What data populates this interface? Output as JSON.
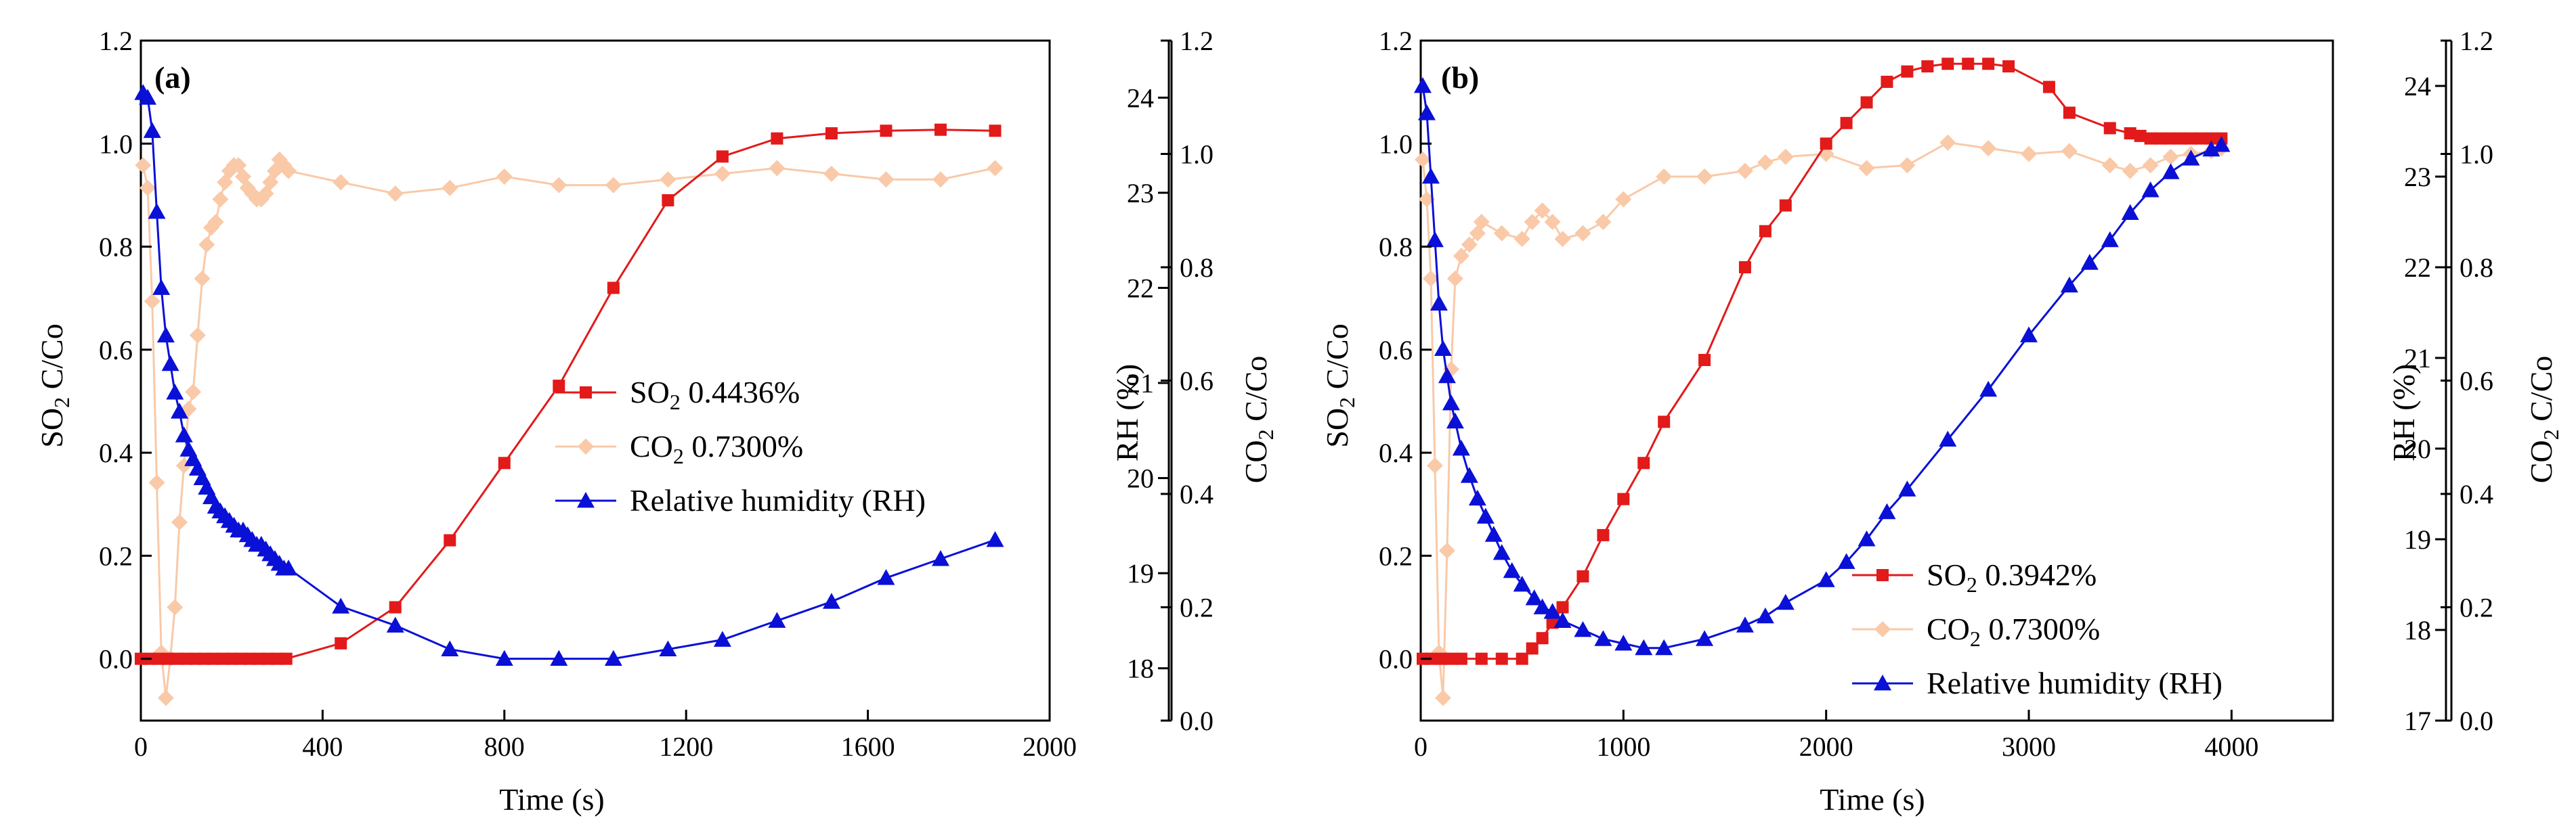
{
  "chart_data": [
    {
      "type": "line",
      "panel_label": "(a)",
      "xlabel": "Time (s)",
      "ylabel_left": "SO2 C/Co",
      "ylabel_right1": "RH (%)",
      "ylabel_right2": "CO2 C/Co",
      "xlim": [
        0,
        2000
      ],
      "ylim_left": [
        -0.12,
        1.2
      ],
      "ylim_rh": [
        17.45,
        24.6
      ],
      "ylim_co2": [
        0,
        1.2
      ],
      "x_ticks": [
        0,
        400,
        800,
        1200,
        1600,
        2000
      ],
      "y_ticks_left": [
        0.0,
        0.2,
        0.4,
        0.6,
        0.8,
        1.0,
        1.2
      ],
      "y_ticks_rh": [
        18,
        19,
        20,
        21,
        22,
        23,
        24
      ],
      "y_ticks_co2": [
        0.0,
        0.2,
        0.4,
        0.6,
        0.8,
        1.0,
        1.2
      ],
      "x_tick_labels": [
        "0",
        "400",
        "800",
        "1200",
        "1600",
        "2000"
      ],
      "y_tick_labels_left": [
        "0.0",
        "0.2",
        "0.4",
        "0.6",
        "0.8",
        "1.0",
        "1.2"
      ],
      "y_tick_labels_rh": [
        "18",
        "19",
        "20",
        "21",
        "22",
        "23",
        "24"
      ],
      "y_tick_labels_co2": [
        "0.0",
        "0.2",
        "0.4",
        "0.6",
        "0.8",
        "1.0",
        "1.2"
      ],
      "legend_position": "center-right",
      "series": [
        {
          "name": "SO2 0.4436%",
          "legend_main": "SO",
          "legend_sub": "2",
          "legend_rest": " 0.4436%",
          "axis": "left",
          "color": "#e21a1a",
          "marker": "square",
          "x": [
            0,
            20,
            40,
            60,
            80,
            100,
            120,
            140,
            160,
            180,
            200,
            220,
            240,
            260,
            280,
            300,
            320,
            440,
            560,
            680,
            800,
            920,
            1040,
            1160,
            1280,
            1400,
            1520,
            1640,
            1760,
            1880
          ],
          "y": [
            0.0,
            0.0,
            0.0,
            0.0,
            0.0,
            0.0,
            0.0,
            0.0,
            0.0,
            0.0,
            0.0,
            0.0,
            0.0,
            0.0,
            0.0,
            0.0,
            0.0,
            0.03,
            0.1,
            0.23,
            0.38,
            0.53,
            0.72,
            0.89,
            0.975,
            1.01,
            1.02,
            1.025,
            1.027,
            1.025
          ]
        },
        {
          "name": "CO2 0.7300%",
          "legend_main": "CO",
          "legend_sub": "2",
          "legend_rest": " 0.7300%",
          "axis": "co2",
          "color": "#f9c9a8",
          "marker": "diamond",
          "x": [
            5,
            15,
            25,
            35,
            45,
            55,
            65,
            75,
            85,
            95,
            105,
            115,
            125,
            135,
            145,
            155,
            165,
            175,
            185,
            195,
            205,
            215,
            225,
            235,
            245,
            255,
            265,
            275,
            285,
            295,
            305,
            315,
            325,
            440,
            560,
            680,
            800,
            920,
            1040,
            1160,
            1280,
            1400,
            1520,
            1640,
            1760,
            1880
          ],
          "y": [
            0.98,
            0.94,
            0.74,
            0.42,
            0.12,
            0.04,
            0.11,
            0.2,
            0.35,
            0.45,
            0.55,
            0.58,
            0.68,
            0.78,
            0.84,
            0.87,
            0.88,
            0.92,
            0.95,
            0.97,
            0.98,
            0.98,
            0.96,
            0.94,
            0.93,
            0.92,
            0.92,
            0.93,
            0.95,
            0.97,
            0.99,
            0.98,
            0.97,
            0.95,
            0.93,
            0.94,
            0.96,
            0.945,
            0.945,
            0.955,
            0.965,
            0.975,
            0.965,
            0.955,
            0.955,
            0.975
          ]
        },
        {
          "name": "Relative humidity (RH)",
          "legend_main": "Relative humidity (RH)",
          "legend_sub": "",
          "legend_rest": "",
          "axis": "rh",
          "color": "#0a10d6",
          "marker": "triangle",
          "x": [
            5,
            15,
            25,
            35,
            45,
            55,
            65,
            75,
            85,
            95,
            105,
            115,
            125,
            135,
            145,
            155,
            165,
            175,
            185,
            195,
            205,
            215,
            225,
            235,
            245,
            255,
            265,
            275,
            285,
            295,
            305,
            315,
            325,
            440,
            560,
            680,
            800,
            920,
            1040,
            1160,
            1280,
            1400,
            1520,
            1640,
            1760,
            1880
          ],
          "y": [
            24.05,
            24.0,
            23.65,
            22.8,
            22.0,
            21.5,
            21.2,
            20.9,
            20.7,
            20.45,
            20.3,
            20.2,
            20.1,
            20.0,
            19.9,
            19.8,
            19.7,
            19.65,
            19.6,
            19.55,
            19.5,
            19.45,
            19.45,
            19.4,
            19.35,
            19.3,
            19.3,
            19.25,
            19.2,
            19.15,
            19.1,
            19.05,
            19.05,
            18.65,
            18.45,
            18.2,
            18.1,
            18.1,
            18.1,
            18.2,
            18.3,
            18.5,
            18.7,
            18.95,
            19.15,
            19.35
          ]
        }
      ]
    },
    {
      "type": "line",
      "panel_label": "(b)",
      "xlabel": "Time (s)",
      "ylabel_left": "SO2 C/Co",
      "ylabel_right1": "RH (%)",
      "ylabel_right2": "CO2 C/Co",
      "xlim": [
        0,
        4500
      ],
      "ylim_left": [
        -0.12,
        1.2
      ],
      "ylim_rh": [
        17,
        24.5
      ],
      "ylim_co2": [
        0,
        1.2
      ],
      "x_ticks": [
        0,
        1000,
        2000,
        3000,
        4000
      ],
      "y_ticks_left": [
        0.0,
        0.2,
        0.4,
        0.6,
        0.8,
        1.0,
        1.2
      ],
      "y_ticks_rh": [
        17,
        18,
        19,
        20,
        21,
        22,
        23,
        24
      ],
      "y_ticks_co2": [
        0.0,
        0.2,
        0.4,
        0.6,
        0.8,
        1.0,
        1.2
      ],
      "x_tick_labels": [
        "0",
        "1000",
        "2000",
        "3000",
        "4000"
      ],
      "y_tick_labels_left": [
        "0.0",
        "0.2",
        "0.4",
        "0.6",
        "0.8",
        "1.0",
        "1.2"
      ],
      "y_tick_labels_rh": [
        "17",
        "18",
        "19",
        "20",
        "21",
        "22",
        "23",
        "24"
      ],
      "y_tick_labels_co2": [
        "0.0",
        "0.2",
        "0.4",
        "0.6",
        "0.8",
        "1.0",
        "1.2"
      ],
      "legend_position": "bottom-right",
      "series": [
        {
          "name": "SO2 0.3942%",
          "legend_main": "SO",
          "legend_sub": "2",
          "legend_rest": " 0.3942%",
          "axis": "left",
          "color": "#e21a1a",
          "marker": "square",
          "x": [
            10,
            50,
            100,
            150,
            200,
            300,
            400,
            500,
            550,
            600,
            650,
            700,
            800,
            900,
            1000,
            1100,
            1200,
            1400,
            1600,
            1700,
            1800,
            2000,
            2100,
            2200,
            2300,
            2400,
            2500,
            2600,
            2700,
            2800,
            2900,
            3100,
            3200,
            3400,
            3500,
            3550,
            3600,
            3650,
            3700,
            3750,
            3800,
            3850,
            3900,
            3950
          ],
          "y": [
            0.0,
            0.0,
            0.0,
            0.0,
            0.0,
            0.0,
            0.0,
            0.0,
            0.02,
            0.04,
            0.07,
            0.1,
            0.16,
            0.24,
            0.31,
            0.38,
            0.46,
            0.58,
            0.76,
            0.83,
            0.88,
            1.0,
            1.04,
            1.08,
            1.12,
            1.14,
            1.15,
            1.155,
            1.155,
            1.155,
            1.15,
            1.11,
            1.06,
            1.03,
            1.02,
            1.015,
            1.01,
            1.01,
            1.01,
            1.01,
            1.01,
            1.01,
            1.01,
            1.01
          ]
        },
        {
          "name": "CO2 0.7300%",
          "legend_main": "CO",
          "legend_sub": "2",
          "legend_rest": " 0.7300%",
          "axis": "co2",
          "color": "#f9c9a8",
          "marker": "diamond",
          "x": [
            10,
            30,
            50,
            70,
            90,
            110,
            130,
            150,
            170,
            200,
            240,
            280,
            300,
            400,
            500,
            550,
            600,
            650,
            700,
            800,
            900,
            1000,
            1200,
            1400,
            1600,
            1700,
            1800,
            2000,
            2200,
            2400,
            2600,
            2800,
            3000,
            3200,
            3400,
            3500,
            3600,
            3700,
            3800,
            3900,
            3950
          ],
          "y": [
            0.99,
            0.92,
            0.78,
            0.45,
            0.12,
            0.04,
            0.3,
            0.62,
            0.78,
            0.82,
            0.84,
            0.86,
            0.88,
            0.86,
            0.85,
            0.88,
            0.9,
            0.88,
            0.85,
            0.86,
            0.88,
            0.92,
            0.96,
            0.96,
            0.97,
            0.985,
            0.995,
            1.0,
            0.975,
            0.98,
            1.02,
            1.01,
            1.0,
            1.005,
            0.98,
            0.97,
            0.98,
            0.995,
            1.0,
            1.005,
            1.01
          ]
        },
        {
          "name": "Relative humidity (RH)",
          "legend_main": "Relative humidity (RH)",
          "legend_sub": "",
          "legend_rest": "",
          "axis": "rh",
          "color": "#0a10d6",
          "marker": "triangle",
          "x": [
            10,
            30,
            50,
            70,
            90,
            110,
            130,
            150,
            170,
            200,
            240,
            280,
            320,
            360,
            400,
            450,
            500,
            560,
            600,
            650,
            700,
            800,
            900,
            1000,
            1100,
            1200,
            1400,
            1600,
            1700,
            1800,
            2000,
            2100,
            2200,
            2300,
            2400,
            2600,
            2800,
            3000,
            3200,
            3300,
            3400,
            3500,
            3600,
            3700,
            3800,
            3900,
            3950
          ],
          "y": [
            24.0,
            23.7,
            23.0,
            22.3,
            21.6,
            21.1,
            20.8,
            20.5,
            20.3,
            20.0,
            19.7,
            19.45,
            19.25,
            19.05,
            18.85,
            18.65,
            18.5,
            18.35,
            18.25,
            18.2,
            18.1,
            18.0,
            17.9,
            17.85,
            17.8,
            17.8,
            17.9,
            18.05,
            18.15,
            18.3,
            18.55,
            18.75,
            19.0,
            19.3,
            19.55,
            20.1,
            20.65,
            21.25,
            21.8,
            22.05,
            22.3,
            22.6,
            22.85,
            23.05,
            23.2,
            23.3,
            23.35
          ]
        }
      ]
    }
  ]
}
